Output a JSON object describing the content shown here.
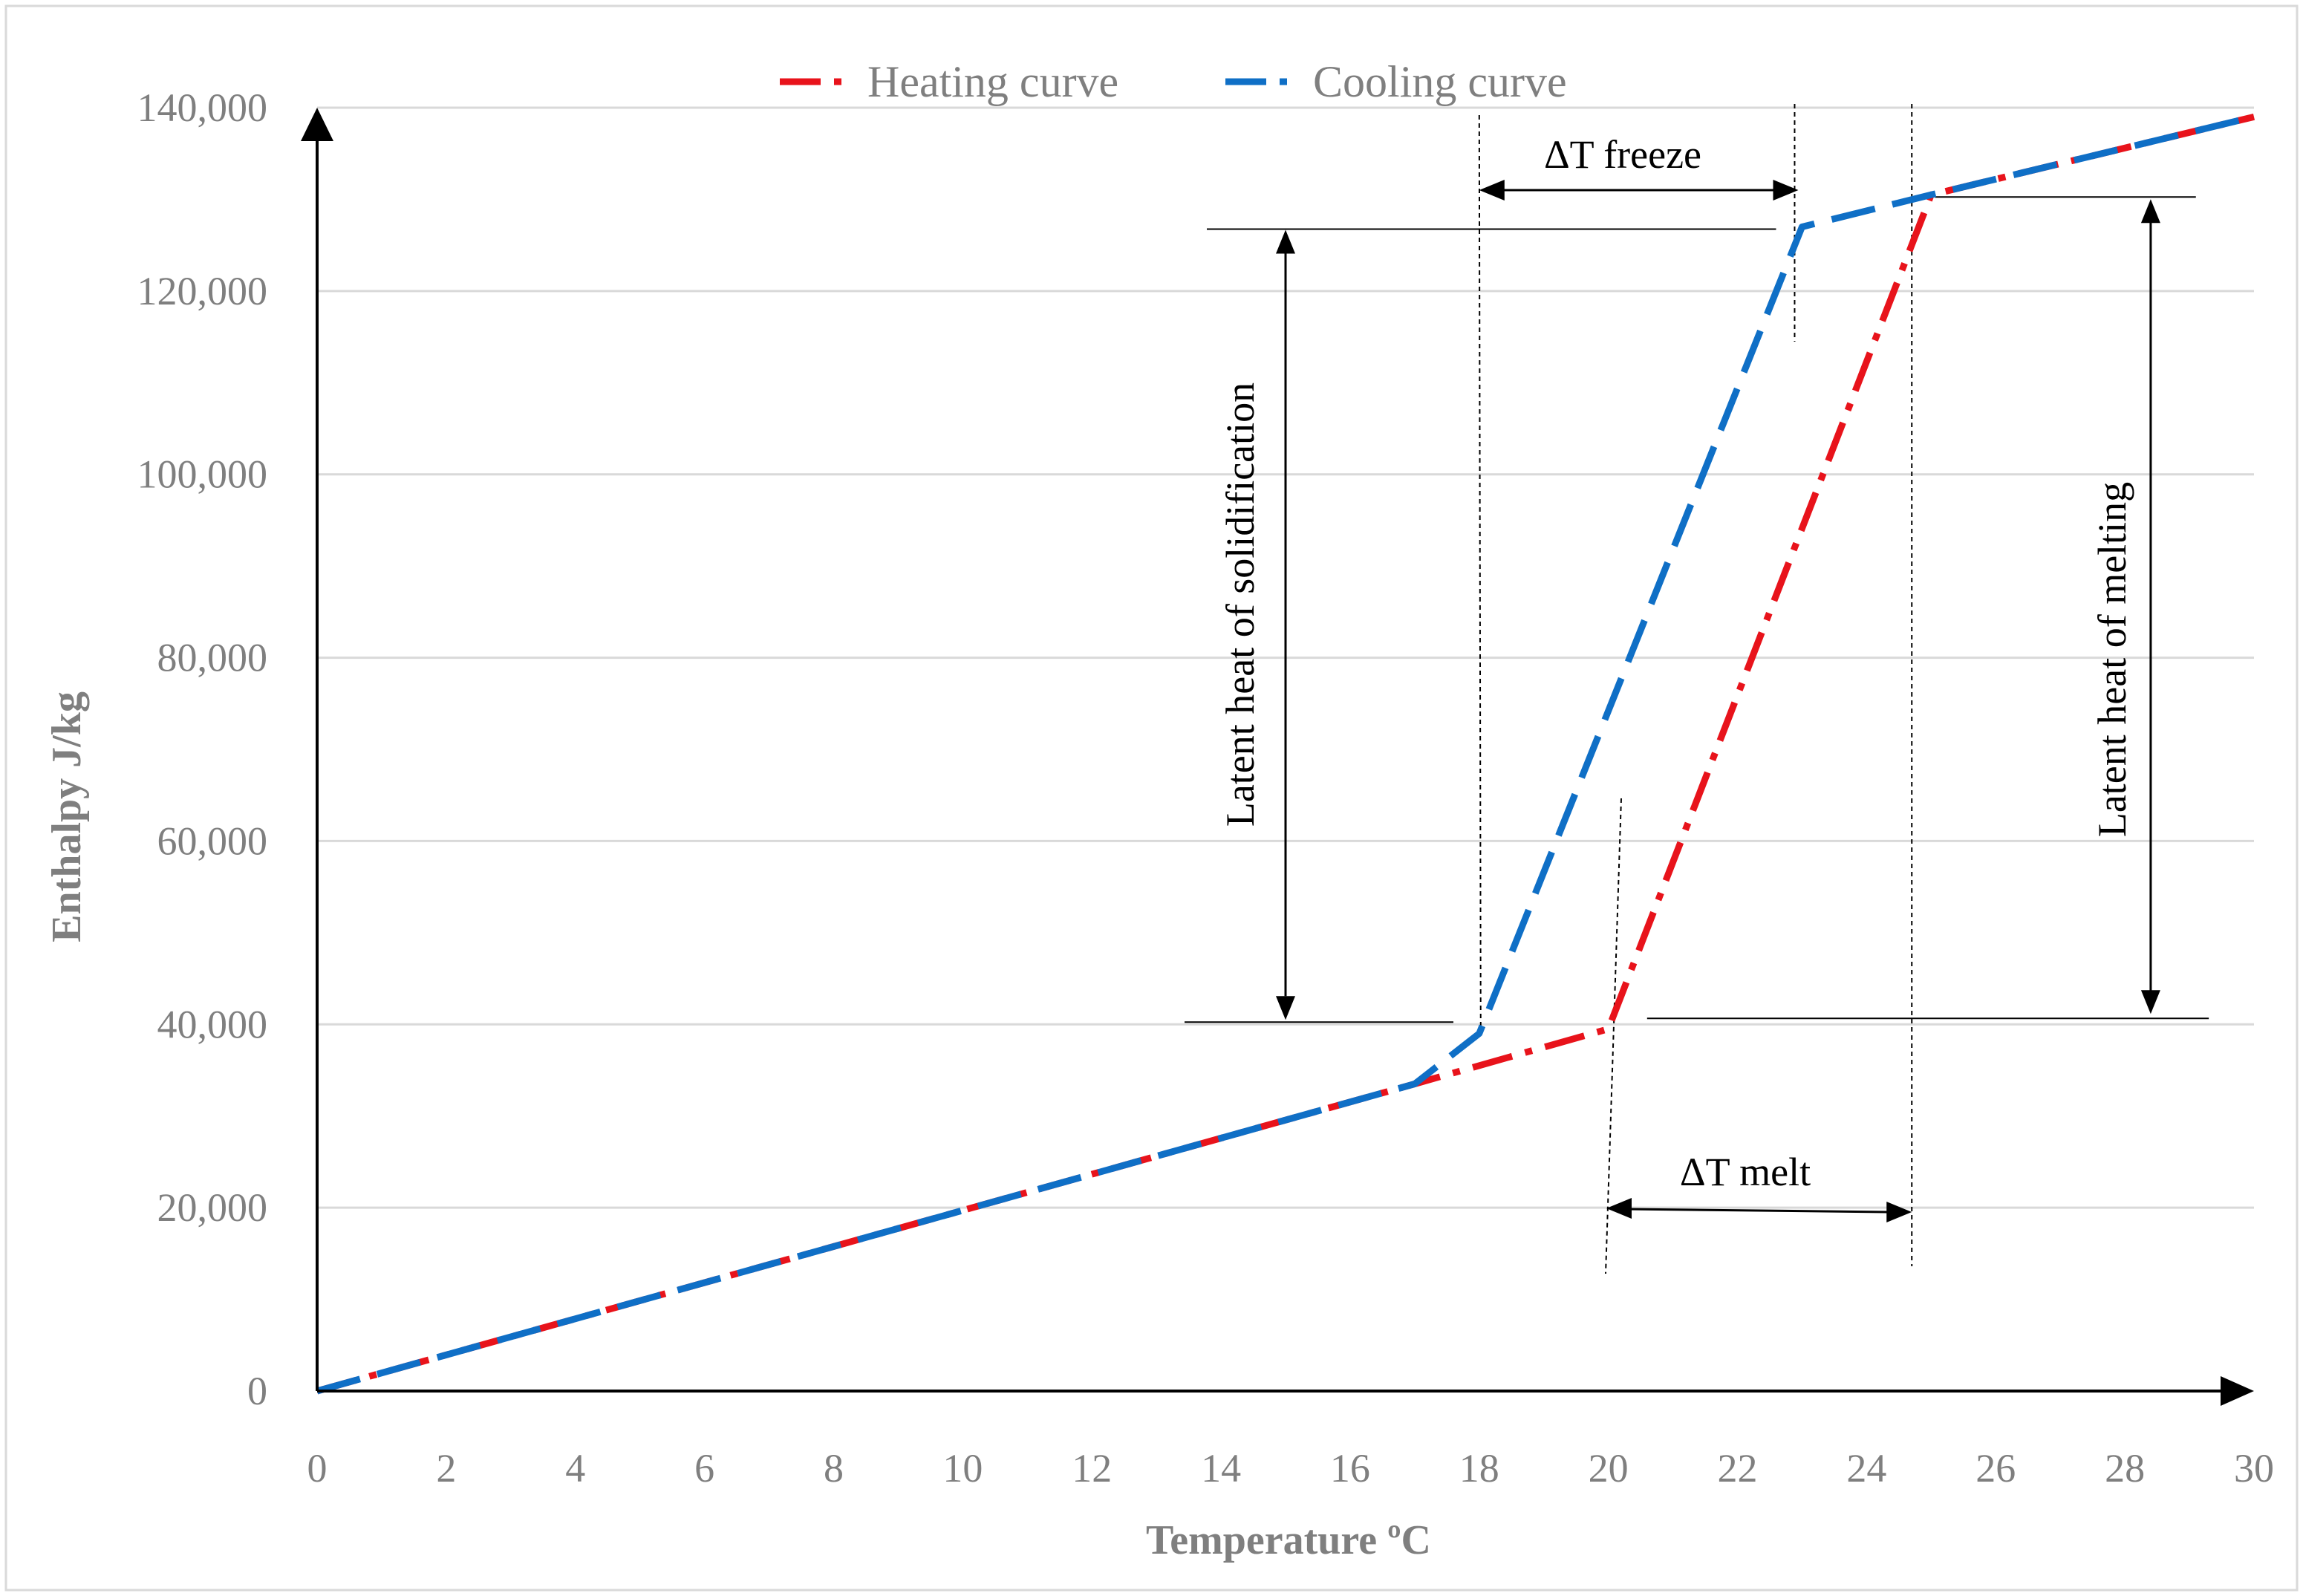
{
  "chart_data": {
    "type": "line",
    "title": "",
    "xlabel": "Temperature ºC",
    "ylabel": "Enthalpy J/kg",
    "xlim": [
      0,
      30
    ],
    "ylim": [
      0,
      140000
    ],
    "xticks": [
      "0",
      "2",
      "4",
      "6",
      "8",
      "10",
      "12",
      "14",
      "16",
      "18",
      "20",
      "22",
      "24",
      "26",
      "28",
      "30"
    ],
    "yticks": [
      "0",
      "20,000",
      "40,000",
      "60,000",
      "80,000",
      "100,000",
      "120,000",
      "140,000"
    ],
    "grid": "horizontal",
    "legend_position": "top-center",
    "series": [
      {
        "name": "Heating curve",
        "color": "#e8131b",
        "style": "dashed",
        "x": [
          0,
          17,
          20,
          25,
          30
        ],
        "y": [
          0,
          33500,
          39500,
          130500,
          139000
        ]
      },
      {
        "name": "Cooling curve",
        "color": "#0f6fc6",
        "style": "dashed",
        "x": [
          0,
          17,
          18,
          23,
          25,
          30
        ],
        "y": [
          0,
          33500,
          39000,
          127000,
          130500,
          139000
        ]
      }
    ],
    "annotations": {
      "delta_t_freeze": "ΔT freeze",
      "delta_t_melt": "ΔT melt",
      "latent_solidification": "Latent heat of solidification",
      "latent_melting": "Latent heat of melting"
    },
    "annotation_values": {
      "freeze_x": [
        18,
        23
      ],
      "freeze_y": 127000,
      "melt_x": [
        20,
        24.7
      ],
      "melt_y": 20000,
      "solidification_x": 15,
      "solidification_y": [
        40000,
        127000
      ],
      "melting_x": 28.4,
      "melting_y": [
        40000,
        130500
      ]
    }
  }
}
